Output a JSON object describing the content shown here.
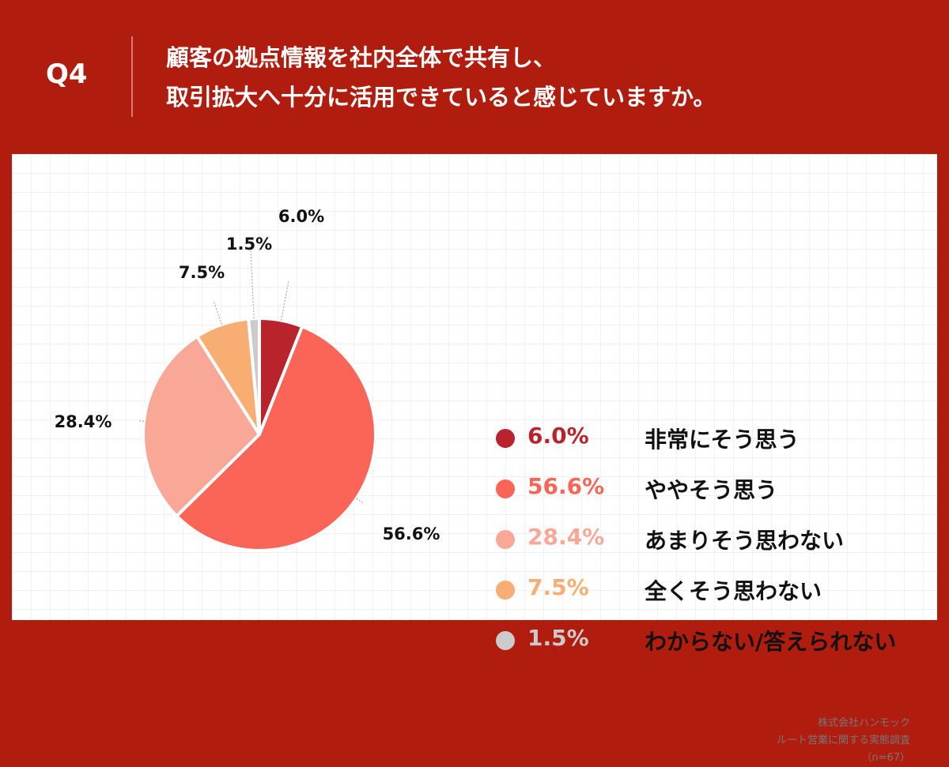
{
  "header": {
    "q_label": "Q4",
    "question_lines": [
      "顧客の拠点情報を社内全体で共有し、",
      "取引拡大へ十分に活用できていると感じていますか。"
    ]
  },
  "chart_data": {
    "type": "pie",
    "slices": [
      {
        "label": "非常にそう思う",
        "value": 6.0,
        "value_label": "6.0%",
        "color": "#b8232c"
      },
      {
        "label": "ややそう思う",
        "value": 56.6,
        "value_label": "56.6%",
        "color": "#fa6558"
      },
      {
        "label": "あまりそう思わない",
        "value": 28.4,
        "value_label": "28.4%",
        "color": "#f9a898"
      },
      {
        "label": "全くそう思わない",
        "value": 7.5,
        "value_label": "7.5%",
        "color": "#f8ad72"
      },
      {
        "label": "わからない/答えられない",
        "value": 1.5,
        "value_label": "1.5%",
        "color": "#cbcbcb"
      }
    ],
    "legend_placement": "right"
  },
  "source": {
    "company": "株式会社ハンモック",
    "survey": "ルート営業に関する実態調査",
    "n": "（n=67）"
  },
  "colors": {
    "header_bg": "#b01c0e",
    "panel_bg": "#ffffff",
    "grid_line": "#f1f1f1",
    "divider": "#e07a6e"
  }
}
